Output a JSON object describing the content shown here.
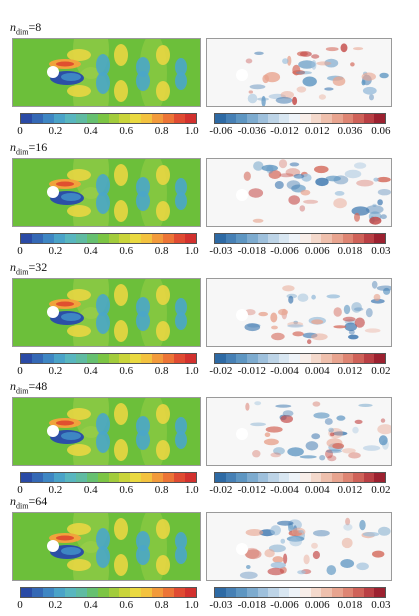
{
  "colors": {
    "mean_scale": [
      "#2a4aa5",
      "#3468b5",
      "#3e86c3",
      "#4aa3c8",
      "#58b6bf",
      "#5fbba2",
      "#66c070",
      "#7cc544",
      "#a2cc3c",
      "#c9d43a",
      "#ead940",
      "#f3c23f",
      "#f29a3b",
      "#ec7436",
      "#e04b32",
      "#d2312e"
    ],
    "diff_scale": [
      "#2e6aa4",
      "#4680b5",
      "#5e96c2",
      "#7dabcf",
      "#9ec0dc",
      "#bdd4e7",
      "#d8e6f1",
      "#eef3f8",
      "#f8eee9",
      "#f4d9cc",
      "#efc0ad",
      "#e8a48f",
      "#de8573",
      "#cf6259",
      "#b93f44",
      "#9c2130"
    ]
  },
  "rows": [
    {
      "label_prefix": "n",
      "label_sub": "dim",
      "label_value": "=8",
      "mean_ticks": [
        "0",
        "0.2",
        "0.4",
        "0.6",
        "0.8",
        "1.0"
      ],
      "diff_ticks": [
        "-0.06",
        "-0.036",
        "-0.012",
        "0.012",
        "0.036",
        "0.06"
      ]
    },
    {
      "label_prefix": "n",
      "label_sub": "dim",
      "label_value": "=16",
      "mean_ticks": [
        "0",
        "0.2",
        "0.4",
        "0.6",
        "0.8",
        "1.0"
      ],
      "diff_ticks": [
        "-0.03",
        "-0.018",
        "-0.006",
        "0.006",
        "0.018",
        "0.03"
      ]
    },
    {
      "label_prefix": "n",
      "label_sub": "dim",
      "label_value": "=32",
      "mean_ticks": [
        "0",
        "0.2",
        "0.4",
        "0.6",
        "0.8",
        "1.0"
      ],
      "diff_ticks": [
        "-0.02",
        "-0.012",
        "-0.004",
        "0.004",
        "0.012",
        "0.02"
      ]
    },
    {
      "label_prefix": "n",
      "label_sub": "dim",
      "label_value": "=48",
      "mean_ticks": [
        "0",
        "0.2",
        "0.4",
        "0.6",
        "0.8",
        "1.0"
      ],
      "diff_ticks": [
        "-0.02",
        "-0.012",
        "-0.004",
        "0.004",
        "0.012",
        "0.02"
      ]
    },
    {
      "label_prefix": "n",
      "label_sub": "dim",
      "label_value": "=64",
      "mean_ticks": [
        "0",
        "0.2",
        "0.4",
        "0.6",
        "0.8",
        "1.0"
      ],
      "diff_ticks": [
        "-0.03",
        "-0.018",
        "-0.006",
        "0.006",
        "0.018",
        "0.03"
      ]
    }
  ]
}
